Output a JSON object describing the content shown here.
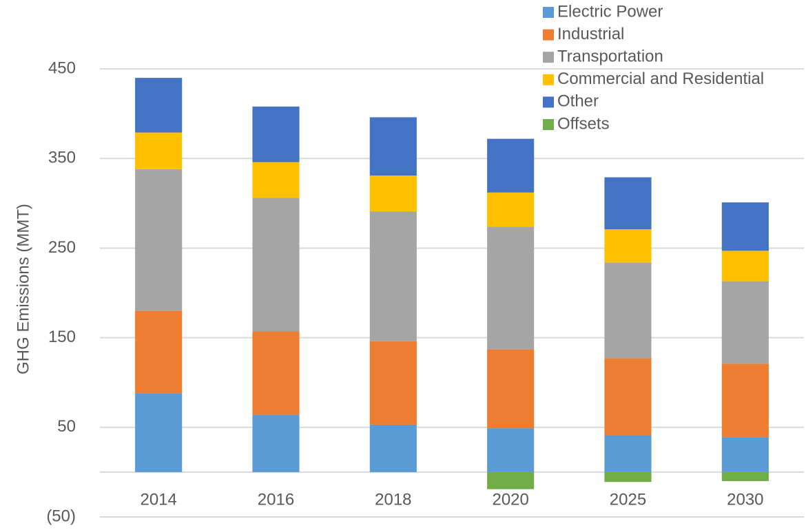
{
  "chart_data": {
    "type": "stacked_bar",
    "y_axis_label": "GHG Emissions (MMT)",
    "categories": [
      "2014",
      "2016",
      "2018",
      "2020",
      "2025",
      "2030"
    ],
    "series": [
      {
        "name": "Electric Power",
        "color": "#5b9bd5",
        "values": [
          88,
          64,
          53,
          49,
          41,
          39
        ]
      },
      {
        "name": "Industrial",
        "color": "#ed7d31",
        "values": [
          92,
          93,
          93,
          88,
          86,
          82
        ]
      },
      {
        "name": "Transportation",
        "color": "#a5a5a5",
        "values": [
          158,
          149,
          145,
          137,
          107,
          92
        ]
      },
      {
        "name": "Commercial and Residential",
        "color": "#ffc000",
        "values": [
          41,
          40,
          40,
          38,
          37,
          34
        ]
      },
      {
        "name": "Other",
        "color": "#4472c4",
        "values": [
          61,
          62,
          65,
          60,
          58,
          54
        ]
      },
      {
        "name": "Offsets",
        "color": "#70ad47",
        "values": [
          0,
          0,
          0,
          -19,
          -11,
          -10
        ]
      }
    ],
    "ylim": [
      -50,
      500
    ],
    "yticks": [
      {
        "value": -50,
        "label": "(50)"
      },
      50,
      150,
      250,
      350,
      450
    ],
    "grid": true,
    "legend": "top-right"
  }
}
